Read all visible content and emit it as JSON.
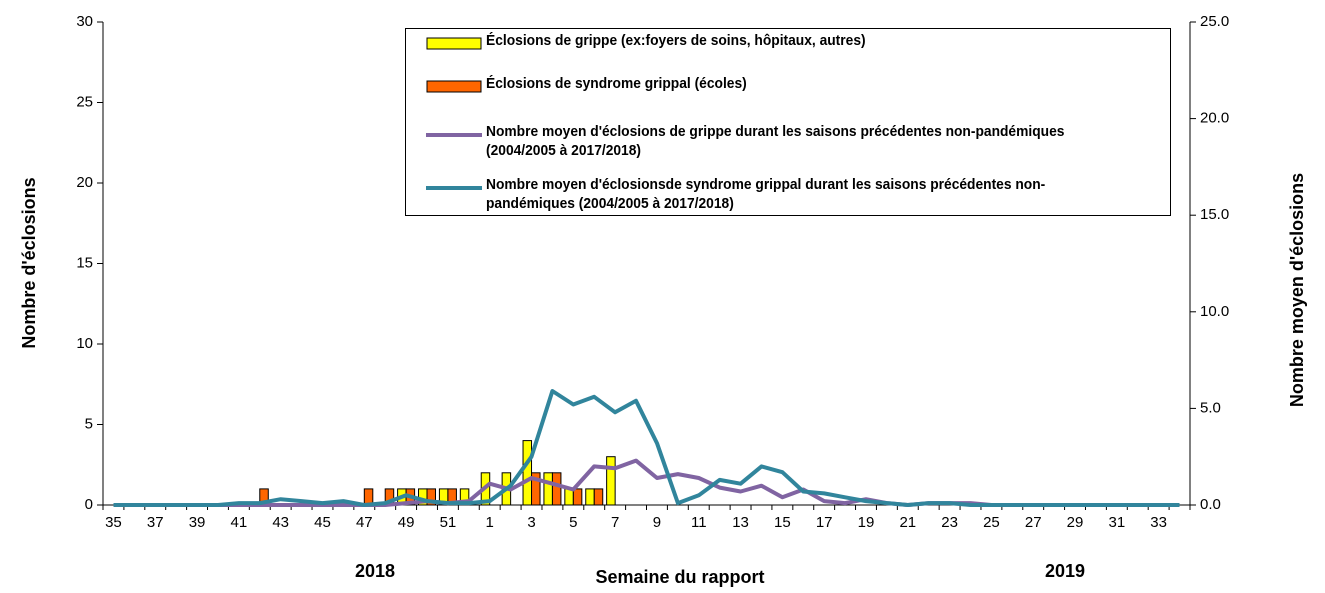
{
  "chart_data": {
    "type": "bar",
    "x_label": "Semaine du rapport",
    "y_label": "Nombre d'éclosions",
    "y2_label": "Nombre moyen d'éclosions",
    "annotations": [
      "2018",
      "2019"
    ],
    "categories": [
      "35",
      null,
      "37",
      null,
      "39",
      null,
      "41",
      null,
      "43",
      null,
      "45",
      null,
      "47",
      null,
      "49",
      null,
      "51",
      null,
      "1",
      null,
      "3",
      null,
      "5",
      null,
      "7",
      null,
      "9",
      null,
      "11",
      null,
      "13",
      null,
      "15",
      null,
      "17",
      null,
      "19",
      null,
      "21",
      null,
      "23",
      null,
      "25",
      null,
      "27",
      null,
      "29",
      null,
      "31",
      null,
      "33",
      null
    ],
    "ylim": [
      0,
      30
    ],
    "yticks": [
      0,
      5,
      10,
      15,
      20,
      25,
      30
    ],
    "y2lim": [
      0,
      25
    ],
    "y2ticks": [
      {
        "value": 0,
        "label": "0.0"
      },
      {
        "value": 5,
        "label": "5.0"
      },
      {
        "value": 10,
        "label": "10.0"
      },
      {
        "value": 15,
        "label": "15.0"
      },
      {
        "value": 20,
        "label": "20.0"
      },
      {
        "value": 25,
        "label": "25.0"
      }
    ],
    "grid": false,
    "legend": "top",
    "series": [
      {
        "name": "Éclosions de grippe (ex:foyers de soins, hôpitaux, autres)",
        "type": "bar",
        "color": "#ffff00",
        "values": [
          0,
          0,
          0,
          0,
          0,
          0,
          0,
          0,
          0,
          0,
          0,
          0,
          0,
          0,
          1,
          1,
          1,
          1,
          2,
          2,
          4,
          2,
          1,
          1,
          3,
          0,
          0,
          0,
          0,
          0,
          0,
          0,
          0,
          0,
          0,
          0,
          0,
          0,
          0,
          0,
          0,
          0,
          0,
          0,
          0,
          0,
          0,
          0,
          0,
          0,
          0,
          0
        ]
      },
      {
        "name": "Éclosions de syndrome grippal (écoles)",
        "type": "bar",
        "color": "#ff6600",
        "values": [
          0,
          0,
          0,
          0,
          0,
          0,
          0,
          1,
          0,
          0,
          0,
          0,
          1,
          1,
          1,
          1,
          1,
          0,
          0,
          0,
          2,
          2,
          1,
          1,
          0,
          0,
          0,
          0,
          0,
          0,
          0,
          0,
          0,
          0,
          0,
          0,
          0,
          0,
          0,
          0,
          0,
          0,
          0,
          0,
          0,
          0,
          0,
          0,
          0,
          0,
          0,
          0
        ]
      },
      {
        "name": "Nombre moyen d'éclosions de grippe durant les saisons précédentes non-pandémiques (2004/2005 à 2017/2018)",
        "type": "line",
        "axis": "y2",
        "color": "#8064a2",
        "values": [
          0,
          0,
          0,
          0,
          0,
          0,
          0,
          0,
          0,
          0,
          0,
          0,
          0,
          0,
          0.1,
          0.2,
          0.1,
          0.2,
          1.1,
          0.8,
          1.4,
          1.1,
          0.8,
          2.0,
          1.9,
          2.3,
          1.4,
          1.6,
          1.4,
          0.9,
          0.7,
          1.0,
          0.4,
          0.8,
          0.2,
          0.1,
          0.3,
          0.1,
          0,
          0.1,
          0.1,
          0.1,
          0,
          0,
          0,
          0,
          0,
          0,
          0,
          0,
          0,
          0
        ]
      },
      {
        "name": "Nombre moyen d'éclosionsde syndrome grippal  durant les saisons précédentes non-pandémiques (2004/2005 à 2017/2018)",
        "type": "line",
        "axis": "y2",
        "color": "#31859c",
        "values": [
          0,
          0,
          0,
          0,
          0,
          0,
          0.1,
          0.1,
          0.3,
          0.2,
          0.1,
          0.2,
          0,
          0.1,
          0.5,
          0.2,
          0.1,
          0.1,
          0.2,
          1.0,
          2.5,
          5.9,
          5.2,
          5.6,
          4.8,
          5.4,
          3.2,
          0.1,
          0.5,
          1.3,
          1.1,
          2.0,
          1.7,
          0.7,
          0.6,
          0.4,
          0.2,
          0.1,
          0,
          0.1,
          0.1,
          0,
          0,
          0,
          0,
          0,
          0,
          0,
          0,
          0,
          0,
          0
        ]
      }
    ]
  }
}
